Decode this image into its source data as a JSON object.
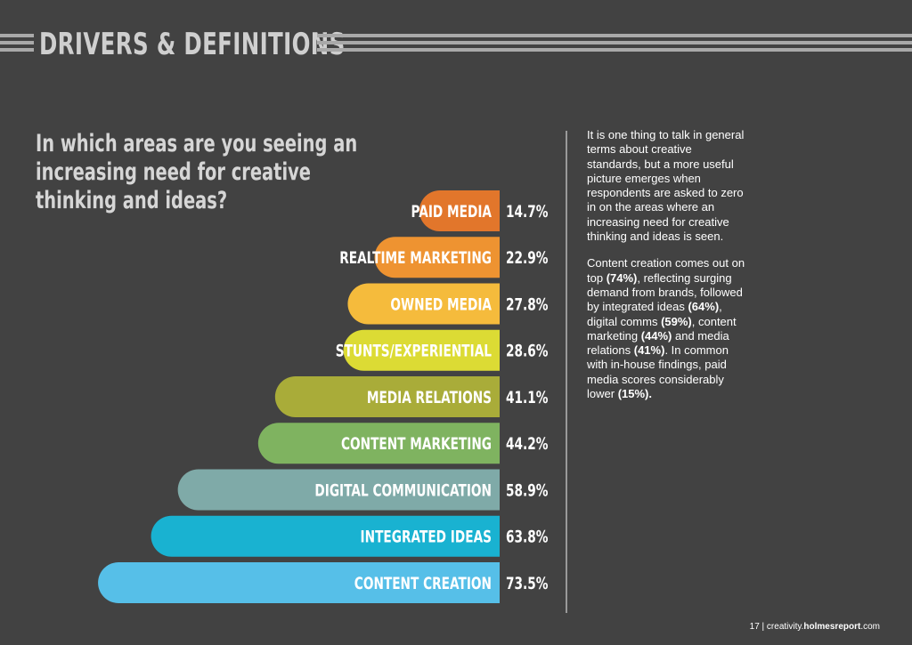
{
  "header": {
    "title": "DRIVERS & DEFINITIONS"
  },
  "question": {
    "lines": [
      "In which areas are you seeing an",
      "increasing need for creative",
      "thinking and ideas?"
    ]
  },
  "chart_data": {
    "type": "bar",
    "orientation": "horizontal",
    "unit": "%",
    "categories": [
      "PAID MEDIA",
      "REALTIME MARKETING",
      "OWNED MEDIA",
      "STUNTS/EXPERIENTIAL",
      "MEDIA RELATIONS",
      "CONTENT MARKETING",
      "DIGITAL COMMUNICATION",
      "INTEGRATED IDEAS",
      "CONTENT CREATION"
    ],
    "values": [
      14.7,
      22.9,
      27.8,
      28.6,
      41.1,
      44.2,
      58.9,
      63.8,
      73.5
    ],
    "value_labels": [
      "14.7%",
      "22.9%",
      "27.8%",
      "28.6%",
      "41.1%",
      "44.2%",
      "58.9%",
      "63.8%",
      "73.5%"
    ],
    "colors": [
      "#e2762b",
      "#ee9331",
      "#f5bb3c",
      "#dcdb34",
      "#a9ac39",
      "#7fb360",
      "#7faaa8",
      "#19b2d1",
      "#56bfe8"
    ],
    "grid": false,
    "legend": "none"
  },
  "sidebar": {
    "paragraph1": "It is one thing to talk in general terms about creative standards, but a more useful picture emerges when respondents are asked to zero in on the areas where an increasing need for creative thinking and ideas is seen.",
    "p2_part1": "Content creation comes out on top ",
    "p2_stat1": "(74%)",
    "p2_part2": ", reflecting surging demand from brands, followed by integrated ideas ",
    "p2_stat2": "(64%)",
    "p2_part3": ", digital comms ",
    "p2_stat3": "(59%)",
    "p2_part4": ", content marketing ",
    "p2_stat4": "(44%)",
    "p2_part5": " and media relations ",
    "p2_stat5": "(41%)",
    "p2_part6": ". In common with in-house findings, paid media scores considerably lower ",
    "p2_stat6": "(15%).",
    "p2_part7": ""
  },
  "footer": {
    "page_number": "17",
    "separator": " | ",
    "url_prefix": "creativity.",
    "url_domain": "holmesreport",
    "url_suffix": ".com"
  }
}
